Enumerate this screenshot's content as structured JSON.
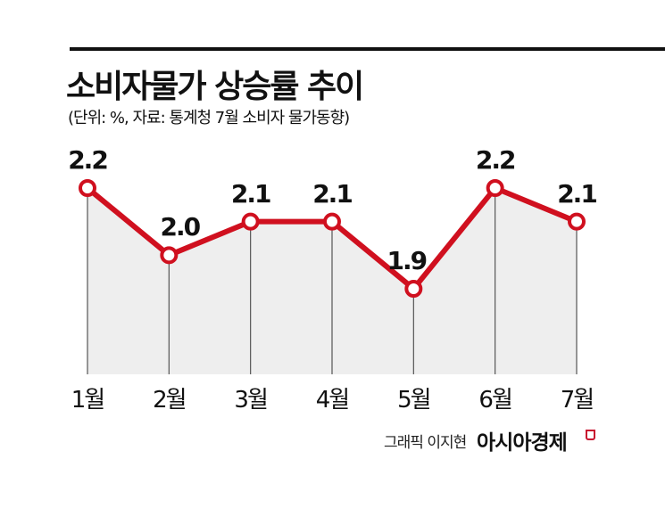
{
  "header": {
    "title": "소비자물가 상승률 추이",
    "subtitle": "(단위: %, 자료: 통계청 7월 소비자 물가동향)"
  },
  "footer": {
    "credit": "그래픽 이지현",
    "brand": "아시아경제"
  },
  "colors": {
    "line": "#d0101f",
    "area": "#eeeeee",
    "dropline": "#555555",
    "marker_fill": "#ffffff",
    "text": "#111111"
  },
  "chart_data": {
    "type": "line",
    "title": "소비자물가 상승률 추이",
    "subtitle": "(단위: %, 자료: 통계청 7월 소비자 물가동향)",
    "xlabel": "",
    "ylabel": "%",
    "categories": [
      "1월",
      "2월",
      "3월",
      "4월",
      "5월",
      "6월",
      "7월"
    ],
    "series": [
      {
        "name": "소비자물가 상승률",
        "values": [
          2.2,
          2.0,
          2.1,
          2.1,
          1.9,
          2.2,
          2.1
        ]
      }
    ],
    "data_labels": [
      "2.2",
      "2.0",
      "2.1",
      "2.1",
      "1.9",
      "2.2",
      "2.1"
    ],
    "grid": false,
    "legend": "none",
    "area_fill": true
  }
}
